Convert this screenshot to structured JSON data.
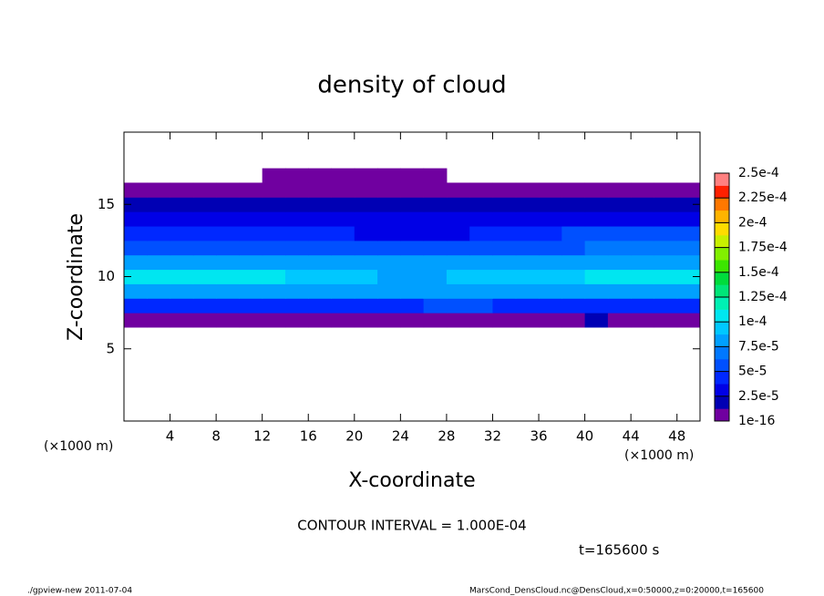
{
  "chart_data": {
    "type": "heatmap",
    "title": "density of cloud",
    "x_label": "X-coordinate",
    "y_label": "Z-coordinate",
    "x_unit": "(×1000 m)",
    "colorbar_unit_note": "(×1000 m)",
    "contour_note": "CONTOUR INTERVAL = 1.000E-04",
    "time_note": "t=165600 s",
    "footer_left": "./gpview-new   2011-07-04",
    "footer_right": "MarsCond_DensCloud.nc@DensCloud,x=0:50000,z=0:20000,t=165600",
    "xlim": [
      0,
      50
    ],
    "ylim": [
      0,
      20
    ],
    "xticks": [
      4,
      8,
      12,
      16,
      20,
      24,
      28,
      32,
      36,
      40,
      44,
      48
    ],
    "yticks": [
      5,
      10,
      15
    ],
    "x": [
      1,
      3,
      5,
      7,
      9,
      11,
      13,
      15,
      17,
      19,
      21,
      23,
      25,
      27,
      29,
      31,
      33,
      35,
      37,
      39,
      41,
      43,
      45,
      47,
      49
    ],
    "z": [
      7,
      8,
      9,
      10,
      11,
      12,
      13,
      14,
      15,
      16,
      17
    ],
    "values": [
      [
        5e-06,
        5e-06,
        5e-06,
        5e-06,
        5e-06,
        5e-06,
        5e-06,
        5e-06,
        5e-06,
        5e-06,
        5e-06,
        5e-06,
        5e-06,
        5e-06,
        5e-06,
        5e-06,
        5e-06,
        5e-06,
        5e-06,
        5e-06,
        2e-05,
        5e-06,
        5e-06,
        5e-06,
        5e-06
      ],
      [
        4e-05,
        4e-05,
        4e-05,
        4e-05,
        4e-05,
        4e-05,
        4e-05,
        4e-05,
        4e-05,
        4e-05,
        4e-05,
        4e-05,
        4e-05,
        5e-05,
        5e-05,
        5e-05,
        4e-05,
        4e-05,
        4e-05,
        4e-05,
        4e-05,
        4e-05,
        4e-05,
        4e-05,
        4e-05
      ],
      [
        8e-05,
        8e-05,
        8e-05,
        8e-05,
        8e-05,
        8e-05,
        8e-05,
        8e-05,
        8e-05,
        8e-05,
        8e-05,
        8e-05,
        8e-05,
        8e-05,
        8e-05,
        8e-05,
        8e-05,
        8e-05,
        8e-05,
        8e-05,
        8e-05,
        8e-05,
        8e-05,
        8e-05,
        8e-05
      ],
      [
        0.000105,
        0.000105,
        0.000105,
        0.000105,
        0.000105,
        0.000105,
        0.000105,
        9e-05,
        9e-05,
        9e-05,
        9e-05,
        8e-05,
        8e-05,
        8e-05,
        9.5e-05,
        9.5e-05,
        9.5e-05,
        9.5e-05,
        9.5e-05,
        9.5e-05,
        0.00011,
        0.00011,
        0.00011,
        0.00011,
        0.00011
      ],
      [
        7.5e-05,
        7.5e-05,
        7.5e-05,
        7.5e-05,
        7.5e-05,
        7.5e-05,
        7.5e-05,
        7.5e-05,
        7.5e-05,
        7.5e-05,
        7.5e-05,
        7.5e-05,
        7.5e-05,
        7.5e-05,
        7.5e-05,
        7.5e-05,
        7.5e-05,
        7.5e-05,
        7.5e-05,
        8.5e-05,
        8.5e-05,
        8.5e-05,
        8.5e-05,
        8.5e-05,
        8.5e-05
      ],
      [
        6e-05,
        6e-05,
        6e-05,
        6e-05,
        6e-05,
        6e-05,
        6e-05,
        6e-05,
        6e-05,
        6e-05,
        6e-05,
        6e-05,
        6e-05,
        6e-05,
        6e-05,
        6e-05,
        6e-05,
        6e-05,
        6e-05,
        6e-05,
        6.5e-05,
        6.5e-05,
        6.5e-05,
        6.5e-05,
        6.5e-05
      ],
      [
        4.5e-05,
        4.5e-05,
        4.5e-05,
        4.5e-05,
        4.5e-05,
        4.5e-05,
        4.5e-05,
        4.5e-05,
        4.5e-05,
        4.5e-05,
        3.5e-05,
        3.5e-05,
        3.5e-05,
        3.5e-05,
        3.5e-05,
        4.5e-05,
        4.5e-05,
        4.5e-05,
        4.5e-05,
        5e-05,
        5e-05,
        5e-05,
        5e-05,
        5e-05,
        5e-05
      ],
      [
        3.5e-05,
        3.5e-05,
        3.5e-05,
        3.5e-05,
        3.5e-05,
        3.5e-05,
        3.5e-05,
        3.5e-05,
        3.5e-05,
        3.5e-05,
        3e-05,
        3e-05,
        3e-05,
        3e-05,
        3e-05,
        3.5e-05,
        3.5e-05,
        3.5e-05,
        3.5e-05,
        3.5e-05,
        3.5e-05,
        3.5e-05,
        3.5e-05,
        3.5e-05,
        3.5e-05
      ],
      [
        2e-05,
        2e-05,
        2e-05,
        2e-05,
        2e-05,
        2e-05,
        2e-05,
        2e-05,
        2e-05,
        2e-05,
        2e-05,
        2e-05,
        2e-05,
        2e-05,
        2e-05,
        2e-05,
        2e-05,
        2e-05,
        2e-05,
        2e-05,
        2e-05,
        2e-05,
        2e-05,
        2e-05,
        2e-05
      ],
      [
        5e-06,
        5e-06,
        5e-06,
        5e-06,
        5e-06,
        5e-06,
        5e-06,
        5e-06,
        5e-06,
        5e-06,
        5e-06,
        5e-06,
        5e-06,
        5e-06,
        5e-06,
        5e-06,
        5e-06,
        5e-06,
        5e-06,
        5e-06,
        5e-06,
        5e-06,
        5e-06,
        5e-06,
        5e-06
      ],
      [
        null,
        null,
        null,
        null,
        null,
        null,
        5e-06,
        5e-06,
        5e-06,
        5e-06,
        5e-06,
        5e-06,
        5e-06,
        5e-06,
        null,
        null,
        null,
        null,
        null,
        null,
        null,
        null,
        null,
        null,
        null
      ]
    ],
    "colorbar_ticks": [
      {
        "value": 1e-16,
        "label": "1e-16"
      },
      {
        "value": 2.5e-05,
        "label": "2.5e-5"
      },
      {
        "value": 5e-05,
        "label": "5e-5"
      },
      {
        "value": 7.5e-05,
        "label": "7.5e-5"
      },
      {
        "value": 0.0001,
        "label": "1e-4"
      },
      {
        "value": 0.000125,
        "label": "1.25e-4"
      },
      {
        "value": 0.00015,
        "label": "1.5e-4"
      },
      {
        "value": 0.000175,
        "label": "1.75e-4"
      },
      {
        "value": 0.0002,
        "label": "2e-4"
      },
      {
        "value": 0.000225,
        "label": "2.25e-4"
      },
      {
        "value": 0.00025,
        "label": "2.5e-4"
      }
    ],
    "colors": [
      "#7000a0",
      "#0000b4",
      "#0000e6",
      "#0028ff",
      "#0050ff",
      "#0078ff",
      "#00a0ff",
      "#00c8ff",
      "#00e6f0",
      "#00f0b4",
      "#00e678",
      "#00dc3c",
      "#3ce600",
      "#82f000",
      "#c8f000",
      "#ffdc00",
      "#ffb400",
      "#ff7800",
      "#ff2000",
      "#ff8080"
    ]
  }
}
